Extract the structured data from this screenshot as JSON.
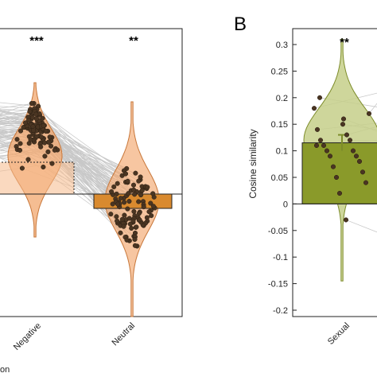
{
  "chart_data": [
    {
      "type": "bar",
      "panel": "",
      "categories": [
        "Negative",
        "Neutral"
      ],
      "values": [
        0.13,
        -0.03
      ],
      "significance": [
        "***",
        "**"
      ],
      "xlabel_fragment": "on",
      "colors": {
        "negative": "#f2a76e",
        "neutral": "#d98a2f",
        "points": "#4a3522",
        "lines": "#bfbfbf"
      }
    },
    {
      "type": "bar",
      "panel": "B",
      "categories": [
        "Sexual"
      ],
      "values": [
        0.115
      ],
      "error": 0.015,
      "significance": [
        "**"
      ],
      "ylabel": "Cosine similarity",
      "ylim": [
        -0.2,
        0.3
      ],
      "yticks": [
        "0.3",
        "0.25",
        "0.2",
        "0.15",
        "0.1",
        "0.05",
        "0",
        "-0.05",
        "-0.1",
        "-0.15",
        "-0.2"
      ],
      "colors": {
        "bar": "#8a9a2a",
        "violin": "#c5cf8a",
        "points": "#4a3522"
      }
    }
  ]
}
